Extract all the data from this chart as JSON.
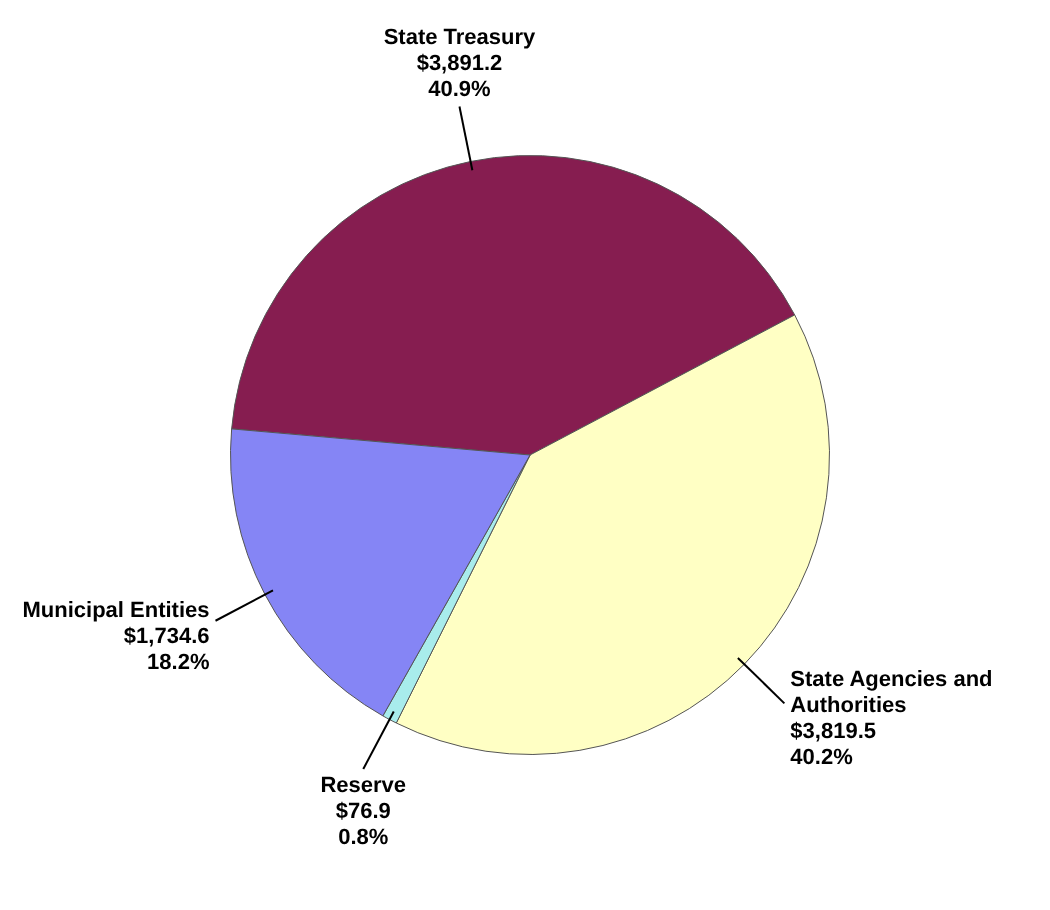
{
  "chart_data": {
    "type": "pie",
    "categories": [
      "State Treasury",
      "State Agencies and Authorities",
      "Reserve",
      "Municipal Entities"
    ],
    "values": [
      3891.2,
      3819.5,
      76.9,
      1734.6
    ],
    "colors": [
      "#861d50",
      "#ffffc4",
      "#a8ecec",
      "#8585f5"
    ],
    "value_labels": [
      "$3,891.2\n40.9%",
      "$3,819.5\n40.2%",
      "$76.9\n0.8%",
      "$1,734.6\n18.2%"
    ],
    "legend": false
  }
}
